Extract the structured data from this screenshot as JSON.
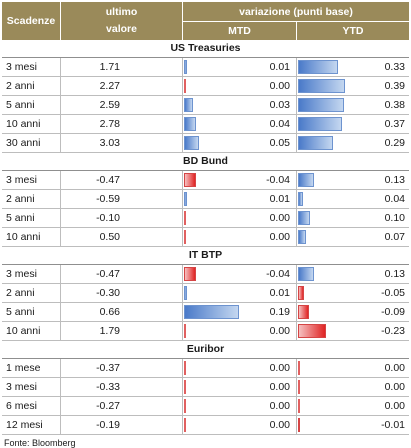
{
  "header": {
    "col_scadenze": "Scadenze",
    "col_ultimo_1": "ultimo",
    "col_ultimo_2": "valore",
    "col_variazione": "variazione (punti base)",
    "col_mtd": "MTD",
    "col_ytd": "YTD"
  },
  "sections": [
    {
      "title": "US Treasuries",
      "rows": [
        {
          "name": "3 mesi",
          "value": "1.71",
          "mtd": "0.01",
          "ytd": "0.33",
          "mtd_num": 0.01,
          "ytd_num": 0.33
        },
        {
          "name": "2 anni",
          "value": "2.27",
          "mtd": "0.00",
          "ytd": "0.39",
          "mtd_num": 0.0,
          "ytd_num": 0.39
        },
        {
          "name": "5 anni",
          "value": "2.59",
          "mtd": "0.03",
          "ytd": "0.38",
          "mtd_num": 0.03,
          "ytd_num": 0.38
        },
        {
          "name": "10 anni",
          "value": "2.78",
          "mtd": "0.04",
          "ytd": "0.37",
          "mtd_num": 0.04,
          "ytd_num": 0.37
        },
        {
          "name": "30 anni",
          "value": "3.03",
          "mtd": "0.05",
          "ytd": "0.29",
          "mtd_num": 0.05,
          "ytd_num": 0.29
        }
      ]
    },
    {
      "title": "BD Bund",
      "rows": [
        {
          "name": "3 mesi",
          "value": "-0.47",
          "mtd": "-0.04",
          "ytd": "0.13",
          "mtd_num": -0.04,
          "ytd_num": 0.13
        },
        {
          "name": "2 anni",
          "value": "-0.59",
          "mtd": "0.01",
          "ytd": "0.04",
          "mtd_num": 0.01,
          "ytd_num": 0.04
        },
        {
          "name": "5 anni",
          "value": "-0.10",
          "mtd": "0.00",
          "ytd": "0.10",
          "mtd_num": 0.0,
          "ytd_num": 0.1
        },
        {
          "name": "10 anni",
          "value": "0.50",
          "mtd": "0.00",
          "ytd": "0.07",
          "mtd_num": 0.0,
          "ytd_num": 0.07
        }
      ]
    },
    {
      "title": "IT BTP",
      "rows": [
        {
          "name": "3 mesi",
          "value": "-0.47",
          "mtd": "-0.04",
          "ytd": "0.13",
          "mtd_num": -0.04,
          "ytd_num": 0.13
        },
        {
          "name": "2 anni",
          "value": "-0.30",
          "mtd": "0.01",
          "ytd": "-0.05",
          "mtd_num": 0.01,
          "ytd_num": -0.05
        },
        {
          "name": "5 anni",
          "value": "0.66",
          "mtd": "0.19",
          "ytd": "-0.09",
          "mtd_num": 0.19,
          "ytd_num": -0.09
        },
        {
          "name": "10 anni",
          "value": "1.79",
          "mtd": "0.00",
          "ytd": "-0.23",
          "mtd_num": 0.0,
          "ytd_num": -0.23
        }
      ]
    },
    {
      "title": "Euribor",
      "rows": [
        {
          "name": "1 mese",
          "value": "-0.37",
          "mtd": "0.00",
          "ytd": "0.00",
          "mtd_num": 0.0,
          "ytd_num": 0.0
        },
        {
          "name": "3 mesi",
          "value": "-0.33",
          "mtd": "0.00",
          "ytd": "0.00",
          "mtd_num": 0.0,
          "ytd_num": 0.0
        },
        {
          "name": "6 mesi",
          "value": "-0.27",
          "mtd": "0.00",
          "ytd": "0.00",
          "mtd_num": 0.0,
          "ytd_num": 0.0
        },
        {
          "name": "12 mesi",
          "value": "-0.19",
          "mtd": "0.00",
          "ytd": "-0.01",
          "mtd_num": 0.0,
          "ytd_num": -0.01
        }
      ]
    }
  ],
  "footer": {
    "source": "Fonte: Bloomberg"
  },
  "colors": {
    "header_bg": "#9a8a5a",
    "positive_bar": "#4a7ac9",
    "negative_bar": "#e02424"
  }
}
